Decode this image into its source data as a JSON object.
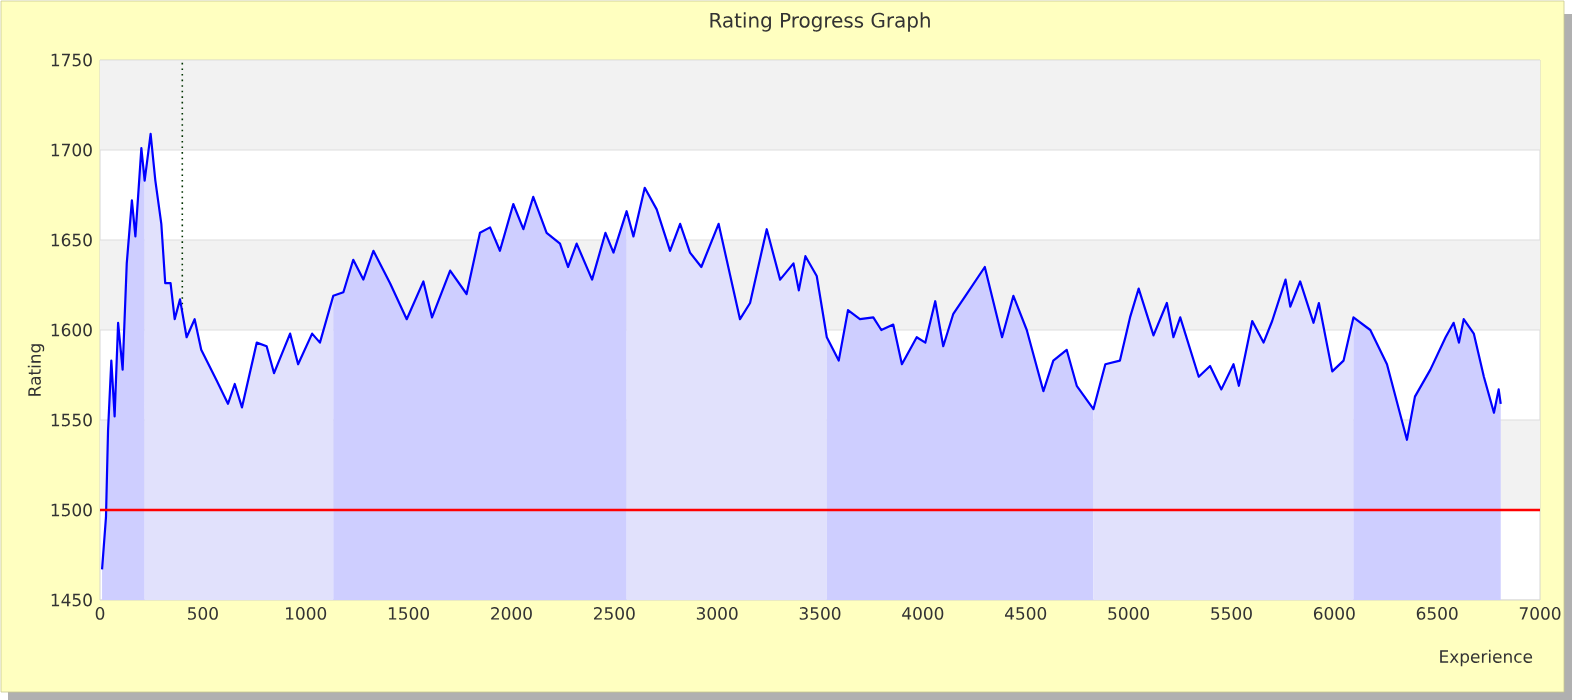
{
  "chart_data": {
    "type": "line",
    "title": "Rating Progress Graph",
    "xlabel": "Experience",
    "ylabel": "Rating",
    "xlim": [
      0,
      7000
    ],
    "xticks": [
      0,
      500,
      1000,
      1500,
      2000,
      2500,
      3000,
      3500,
      4000,
      4500,
      5000,
      5500,
      6000,
      6500,
      7000
    ],
    "ylim": [
      1450,
      1750
    ],
    "yticks": [
      1450,
      1500,
      1550,
      1600,
      1650,
      1700,
      1750
    ],
    "grid": "y",
    "marker": "none",
    "line_style": "solid",
    "series": [
      {
        "color": "#0000ff",
        "x": [
          10,
          29,
          39,
          55,
          71,
          88,
          110,
          130,
          155,
          172,
          201,
          217,
          246,
          269,
          298,
          317,
          343,
          363,
          389,
          421,
          460,
          492,
          567,
          622,
          655,
          690,
          762,
          810,
          846,
          924,
          963,
          1031,
          1069,
          1134,
          1183,
          1231,
          1280,
          1329,
          1410,
          1491,
          1572,
          1614,
          1702,
          1782,
          1847,
          1896,
          1944,
          2009,
          2058,
          2106,
          2171,
          2236,
          2275,
          2317,
          2392,
          2457,
          2496,
          2560,
          2593,
          2648,
          2706,
          2771,
          2820,
          2868,
          2923,
          3007,
          3111,
          3160,
          3241,
          3306,
          3371,
          3397,
          3429,
          3484,
          3533,
          3591,
          3636,
          3694,
          3759,
          3798,
          3856,
          3898,
          3970,
          4012,
          4060,
          4099,
          4148,
          4207,
          4301,
          4385,
          4440,
          4505,
          4586,
          4634,
          4699,
          4748,
          4829,
          4887,
          4958,
          5007,
          5049,
          5121,
          5186,
          5218,
          5251,
          5341,
          5396,
          5451,
          5510,
          5536,
          5601,
          5656,
          5698,
          5763,
          5786,
          5834,
          5899,
          5925,
          5990,
          6045,
          6093,
          6175,
          6256,
          6353,
          6392,
          6467,
          6541,
          6580,
          6606,
          6629,
          6678,
          6727,
          6776,
          6799,
          6809
        ],
        "values": [
          1467,
          1496,
          1544,
          1583,
          1552,
          1604,
          1578,
          1637,
          1672,
          1652,
          1701,
          1683,
          1709,
          1683,
          1659,
          1626,
          1626,
          1606,
          1617,
          1596,
          1606,
          1589,
          1572,
          1559,
          1570,
          1557,
          1593,
          1591,
          1576,
          1598,
          1581,
          1598,
          1593,
          1619,
          1621,
          1639,
          1628,
          1644,
          1626,
          1606,
          1627,
          1607,
          1633,
          1620,
          1654,
          1657,
          1644,
          1670,
          1656,
          1674,
          1654,
          1648,
          1635,
          1648,
          1628,
          1654,
          1643,
          1666,
          1652,
          1679,
          1667,
          1644,
          1659,
          1643,
          1635,
          1659,
          1606,
          1615,
          1656,
          1628,
          1637,
          1622,
          1641,
          1630,
          1596,
          1583,
          1611,
          1606,
          1607,
          1600,
          1603,
          1581,
          1596,
          1593,
          1616,
          1591,
          1609,
          1619,
          1635,
          1596,
          1619,
          1600,
          1566,
          1583,
          1589,
          1569,
          1556,
          1581,
          1583,
          1607,
          1623,
          1597,
          1615,
          1596,
          1607,
          1574,
          1580,
          1567,
          1581,
          1569,
          1605,
          1593,
          1605,
          1628,
          1613,
          1627,
          1604,
          1615,
          1577,
          1583,
          1607,
          1600,
          1581,
          1539,
          1563,
          1578,
          1596,
          1604,
          1593,
          1606,
          1598,
          1574,
          1554,
          1567,
          1559
        ]
      },
      {
        "type": "area",
        "color": "#ceceff",
        "x": [
          10,
          29,
          39,
          55,
          71,
          88,
          110,
          130,
          155,
          172,
          201,
          217
        ],
        "values": [
          1467,
          1496,
          1544,
          1583,
          1552,
          1604,
          1578,
          1637,
          1672,
          1652,
          1701,
          1683
        ]
      },
      {
        "type": "area",
        "color": "#e1e1fc",
        "x": [
          217,
          246,
          269,
          298,
          317,
          343,
          363,
          389,
          421,
          460,
          492,
          567,
          622,
          655,
          690,
          762,
          810,
          846,
          924,
          963,
          1031,
          1069,
          1134
        ],
        "values": [
          1683,
          1709,
          1683,
          1659,
          1626,
          1626,
          1606,
          1617,
          1596,
          1606,
          1589,
          1572,
          1559,
          1570,
          1557,
          1593,
          1591,
          1576,
          1598,
          1581,
          1598,
          1593,
          1619
        ]
      },
      {
        "type": "area",
        "color": "#ceceff",
        "x": [
          1134,
          1183,
          1231,
          1280,
          1329,
          1410,
          1491,
          1572,
          1614,
          1702,
          1782,
          1847,
          1896,
          1944,
          2009,
          2058,
          2106,
          2171,
          2236,
          2275,
          2317,
          2392,
          2457,
          2496,
          2560
        ],
        "values": [
          1619,
          1621,
          1639,
          1628,
          1644,
          1626,
          1606,
          1627,
          1607,
          1633,
          1620,
          1654,
          1657,
          1644,
          1670,
          1656,
          1674,
          1654,
          1648,
          1635,
          1648,
          1628,
          1654,
          1643,
          1666
        ]
      },
      {
        "type": "area",
        "color": "#e1e1fc",
        "x": [
          2560,
          2593,
          2648,
          2706,
          2771,
          2820,
          2868,
          2923,
          3007,
          3111,
          3160,
          3241,
          3306,
          3371,
          3397,
          3429,
          3484,
          3533
        ],
        "values": [
          1666,
          1652,
          1679,
          1667,
          1644,
          1659,
          1643,
          1635,
          1659,
          1606,
          1615,
          1656,
          1628,
          1637,
          1622,
          1641,
          1630,
          1596
        ]
      },
      {
        "type": "area",
        "color": "#ceceff",
        "x": [
          3533,
          3591,
          3636,
          3694,
          3759,
          3798,
          3856,
          3898,
          3970,
          4012,
          4060,
          4099,
          4148,
          4207,
          4301,
          4385,
          4440,
          4505,
          4586,
          4634,
          4699,
          4748,
          4829
        ],
        "values": [
          1596,
          1583,
          1611,
          1606,
          1607,
          1600,
          1603,
          1581,
          1596,
          1593,
          1616,
          1591,
          1609,
          1619,
          1635,
          1596,
          1619,
          1600,
          1566,
          1583,
          1589,
          1569,
          1556
        ]
      },
      {
        "type": "area",
        "color": "#e1e1fc",
        "x": [
          4829,
          4887,
          4958,
          5007,
          5049,
          5121,
          5186,
          5218,
          5251,
          5341,
          5396,
          5451,
          5510,
          5536,
          5601,
          5656,
          5698,
          5763,
          5786,
          5834,
          5899,
          5925,
          5990,
          6045,
          6093
        ],
        "values": [
          1556,
          1581,
          1583,
          1607,
          1623,
          1597,
          1615,
          1596,
          1607,
          1574,
          1580,
          1567,
          1581,
          1569,
          1605,
          1593,
          1605,
          1628,
          1613,
          1627,
          1604,
          1615,
          1577,
          1583,
          1607
        ]
      },
      {
        "type": "area",
        "color": "#ceceff",
        "x": [
          6093,
          6175,
          6256,
          6353,
          6392,
          6467,
          6541,
          6580,
          6606,
          6629,
          6678,
          6727,
          6776,
          6799,
          6809
        ],
        "values": [
          1607,
          1600,
          1581,
          1539,
          1563,
          1578,
          1596,
          1604,
          1593,
          1606,
          1598,
          1574,
          1554,
          1567,
          1559
        ]
      }
    ],
    "ref_lines": [
      {
        "axis": "y",
        "value": 1500,
        "color": "#ff0000",
        "line_style": "solid"
      },
      {
        "axis": "x",
        "value": 400,
        "color": "#003300",
        "line_style": "dotted"
      }
    ],
    "bands": [
      {
        "axis": "y",
        "from": 1700,
        "to": 1750,
        "color": "#f2f2f2"
      },
      {
        "axis": "y",
        "from": 1600,
        "to": 1650,
        "color": "#f2f2f2"
      },
      {
        "axis": "y",
        "from": 1500,
        "to": 1550,
        "color": "#f2f2f2"
      }
    ]
  }
}
